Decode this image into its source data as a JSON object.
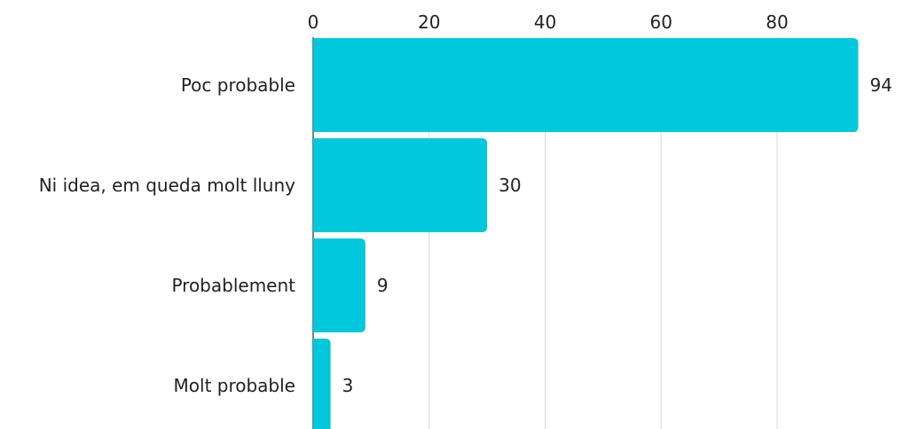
{
  "chart_data": {
    "type": "bar",
    "orientation": "horizontal",
    "categories": [
      "Poc probable",
      "Ni idea, em queda molt lluny",
      "Probablement",
      "Molt probable"
    ],
    "values": [
      94,
      30,
      9,
      3
    ],
    "title": "",
    "xlabel": "",
    "ylabel": "",
    "xlim": [
      0,
      95
    ],
    "ticks": [
      0,
      20,
      40,
      60,
      80
    ],
    "tick_labels": [
      "0",
      "20",
      "40",
      "60",
      "80"
    ],
    "axis_position": "top",
    "grid": true,
    "legend": "none",
    "bar_color": "#00C8DC",
    "grid_color": "#D9D9D9"
  }
}
